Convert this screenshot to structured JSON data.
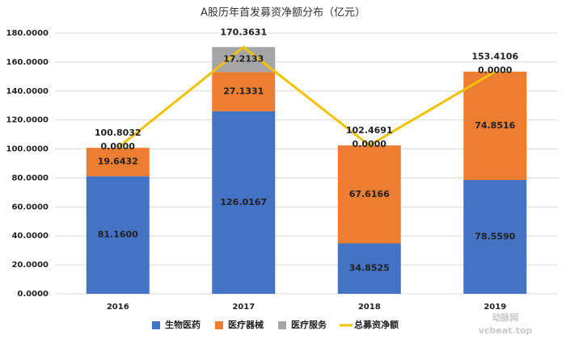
{
  "chart_data": {
    "type": "bar",
    "stacked": true,
    "title": "A股历年首发募资净额分布（亿元）",
    "categories": [
      "2016",
      "2017",
      "2018",
      "2019"
    ],
    "series": [
      {
        "name": "生物医药",
        "color": "#4472c4",
        "values": [
          81.16,
          126.0167,
          34.8525,
          78.559
        ],
        "value_labels": [
          "81.1600",
          "126.0167",
          "34.8525",
          "78.5590"
        ]
      },
      {
        "name": "医疗器械",
        "color": "#ed7d31",
        "values": [
          19.6432,
          27.1331,
          67.6166,
          74.8516
        ],
        "value_labels": [
          "19.6432",
          "27.1331",
          "67.6166",
          "74.8516"
        ]
      },
      {
        "name": "医疗服务",
        "color": "#a5a5a5",
        "values": [
          0,
          17.2133,
          0,
          0
        ],
        "value_labels": [
          "0.0000",
          "17.2133",
          "0.0000",
          "0.0000"
        ]
      },
      {
        "name": "总募资净额",
        "color": "#f2c200",
        "type": "line",
        "values": [
          100.8032,
          170.3631,
          102.4691,
          153.4106
        ]
      }
    ],
    "ylim": [
      0,
      180
    ],
    "yticks": [
      {
        "value": 0,
        "label": "0.0000"
      },
      {
        "value": 20,
        "label": "20.0000"
      },
      {
        "value": 40,
        "label": "40.0000"
      },
      {
        "value": 60,
        "label": "60.0000"
      },
      {
        "value": 80,
        "label": "80.0000"
      },
      {
        "value": 100,
        "label": "100.0000"
      },
      {
        "value": 120,
        "label": "120.0000"
      },
      {
        "value": 140,
        "label": "140.0000"
      },
      {
        "value": 160,
        "label": "160.0000"
      },
      {
        "value": 180,
        "label": "180.0000"
      }
    ],
    "grid": true,
    "legend": "bottom",
    "watermark": [
      "动脉网",
      "vcbeat.top"
    ]
  }
}
